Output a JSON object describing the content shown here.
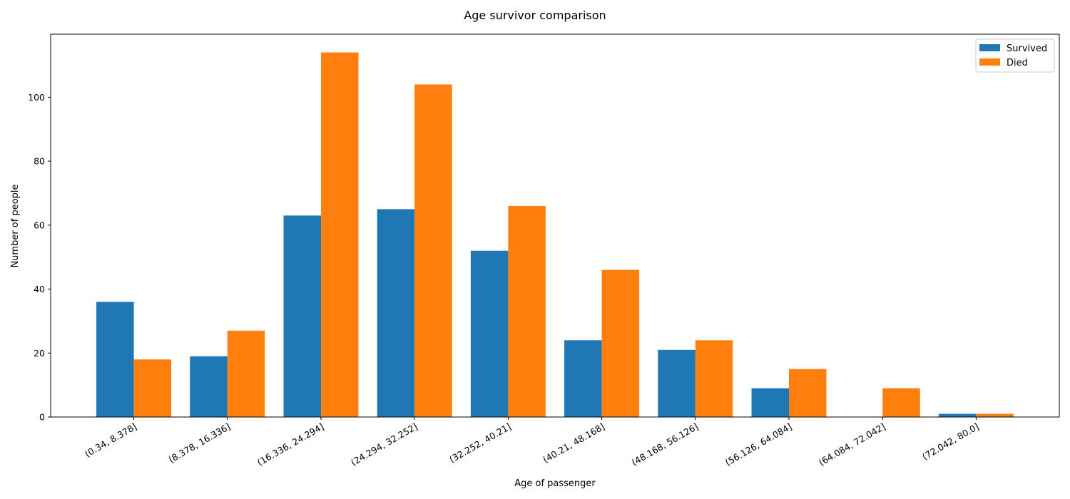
{
  "chart_data": {
    "type": "bar",
    "title": "Age survivor comparison",
    "xlabel": "Age of passenger",
    "ylabel": "Number of people",
    "categories": [
      "(0.34, 8.378]",
      "(8.378, 16.336]",
      "(16.336, 24.294]",
      "(24.294, 32.252]",
      "(32.252, 40.21]",
      "(40.21, 48.168]",
      "(48.168, 56.126]",
      "(56.126, 64.084]",
      "(64.084, 72.042]",
      "(72.042, 80.0]"
    ],
    "series": [
      {
        "name": "Survived",
        "color": "#1f77b4",
        "values": [
          36,
          19,
          63,
          65,
          52,
          24,
          21,
          9,
          0,
          1
        ]
      },
      {
        "name": "Died",
        "color": "#ff7f0e",
        "values": [
          18,
          27,
          114,
          104,
          66,
          46,
          24,
          15,
          9,
          1
        ]
      }
    ],
    "ylim": [
      0,
      119.7
    ],
    "yticks": [
      0,
      20,
      40,
      60,
      80,
      100
    ],
    "grid": false,
    "legend": "top-right"
  }
}
